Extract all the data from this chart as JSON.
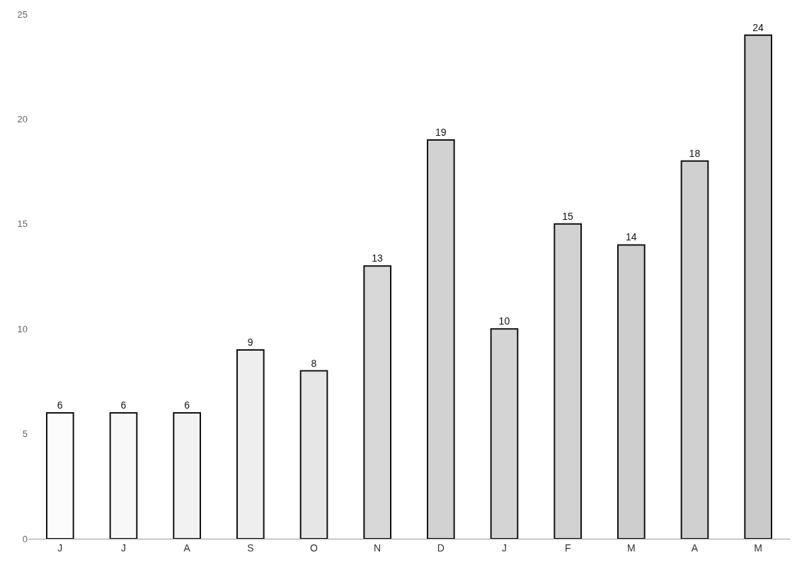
{
  "chart_data": {
    "type": "bar",
    "categories": [
      "J",
      "J",
      "A",
      "S",
      "O",
      "N",
      "D",
      "J",
      "F",
      "M",
      "A",
      "M"
    ],
    "values": [
      6,
      6,
      6,
      9,
      8,
      13,
      19,
      10,
      15,
      14,
      18,
      24
    ],
    "colors": [
      "#fcfcfc",
      "#f8f8f8",
      "#f2f2f2",
      "#eeeeee",
      "#e6e6e6",
      "#d8d8d8",
      "#d2d2d2",
      "#d4d4d4",
      "#d2d2d2",
      "#cecece",
      "#d0d0d0",
      "#cacaca"
    ],
    "ylim": [
      0,
      25
    ],
    "yticks": [
      0,
      5,
      10,
      15,
      20,
      25
    ],
    "grid": false,
    "data_labels": true
  }
}
